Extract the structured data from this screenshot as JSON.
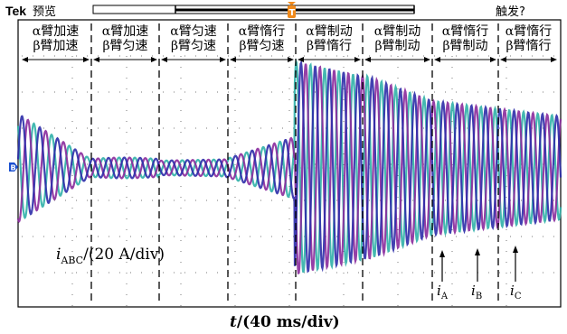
{
  "header": {
    "brand": "Tek",
    "mode": "预览",
    "trigger_label": "触发?"
  },
  "segments": [
    {
      "line1": "α臂加速",
      "line2": "β臂加速"
    },
    {
      "line1": "α臂加速",
      "line2": "β臂匀速"
    },
    {
      "line1": "α臂匀速",
      "line2": "β臂匀速"
    },
    {
      "line1": "α臂惰行",
      "line2": "β臂匀速"
    },
    {
      "line1": "α臂制动",
      "line2": "β臂惰行"
    },
    {
      "line1": "α臂制动",
      "line2": "β臂制动"
    },
    {
      "line1": "α臂惰行",
      "line2": "β臂制动"
    },
    {
      "line1": "α臂惰行",
      "line2": "β臂惰行"
    }
  ],
  "y_label": {
    "prefix": "i",
    "sub": "ABC",
    "suffix": "/(20 A/div)"
  },
  "x_label": {
    "prefix": "t",
    "suffix": "/(40 ms/div)"
  },
  "phase_labels": [
    {
      "name": "i",
      "sub": "A"
    },
    {
      "name": "i",
      "sub": "B"
    },
    {
      "name": "i",
      "sub": "C"
    }
  ],
  "colors": {
    "phase_a": "#2c2ca8",
    "phase_b": "#30b0a8",
    "phase_c": "#8a2a9c",
    "header_bar": "#1a1a1a",
    "trigger_marker": "#f08a1c",
    "ground_marker": "#1a4fd0"
  },
  "icons": {
    "trigger_marker": "trigger-t-icon",
    "ground_marker": "ground-arrow-icon"
  }
}
